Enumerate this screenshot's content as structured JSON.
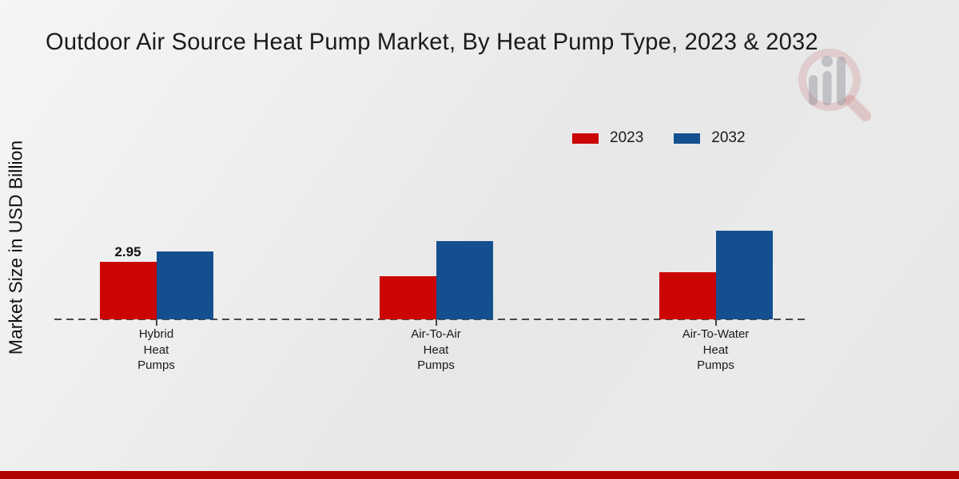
{
  "chart_data": {
    "type": "bar",
    "title": "Outdoor Air Source Heat Pump Market, By Heat Pump Type, 2023 & 2032",
    "ylabel": "Market Size in USD Billion",
    "xlabel": "",
    "categories": [
      "Hybrid Heat Pumps",
      "Air-To-Air Heat Pumps",
      "Air-To-Water Heat Pumps"
    ],
    "series": [
      {
        "name": "2023",
        "color": "#cb0404",
        "values": [
          2.95,
          2.2,
          2.4
        ],
        "value_labels": [
          "2.95",
          "",
          ""
        ]
      },
      {
        "name": "2032",
        "color": "#14508f",
        "values": [
          3.5,
          4.0,
          4.55
        ],
        "value_labels": [
          "",
          "",
          ""
        ]
      }
    ],
    "ylim": [
      0,
      5
    ],
    "grid": false,
    "legend_position": "top-right",
    "axis_style": "dashed-baseline-only"
  },
  "colors": {
    "footer_strip": "#b20202",
    "baseline": "#4a4a4a",
    "title_text": "#1b1b1b",
    "background": "#ebebeb",
    "watermark_red": "#c05858",
    "watermark_gray": "#82828c"
  },
  "icons": {
    "watermark": "magnifier-bar-chart-logo"
  }
}
